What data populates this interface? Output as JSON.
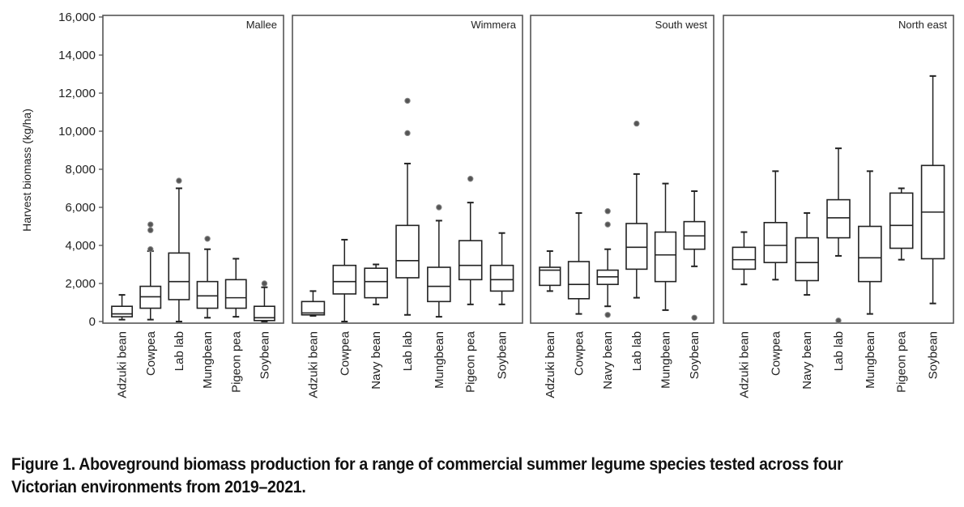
{
  "chart_data": {
    "type": "boxplot",
    "title": "",
    "ylabel": "Harvest biomass (kg/ha)",
    "xlabel": "",
    "ylim": [
      0,
      16000
    ],
    "yticks": [
      0,
      2000,
      4000,
      6000,
      8000,
      10000,
      12000,
      14000,
      16000
    ],
    "ytick_labels": [
      "0",
      "2,000",
      "4,000",
      "6,000",
      "8,000",
      "10,000",
      "12,000",
      "14,000",
      "16,000"
    ],
    "grid": false,
    "panels": [
      {
        "name": "Mallee",
        "categories": [
          "Adzuki bean",
          "Cowpea",
          "Lab lab",
          "Mungbean",
          "Pigeon pea",
          "Soybean"
        ],
        "boxes": [
          {
            "min": 100,
            "q1": 250,
            "median": 400,
            "q3": 800,
            "max": 1400,
            "outliers": []
          },
          {
            "min": 100,
            "q1": 700,
            "median": 1300,
            "q3": 1850,
            "max": 3700,
            "outliers": [
              3800,
              4800,
              5100
            ]
          },
          {
            "min": 0,
            "q1": 1150,
            "median": 2100,
            "q3": 3600,
            "max": 7000,
            "outliers": [
              7400
            ]
          },
          {
            "min": 200,
            "q1": 700,
            "median": 1350,
            "q3": 2100,
            "max": 3800,
            "outliers": [
              4350
            ]
          },
          {
            "min": 250,
            "q1": 700,
            "median": 1250,
            "q3": 2200,
            "max": 3300,
            "outliers": []
          },
          {
            "min": 0,
            "q1": 50,
            "median": 200,
            "q3": 800,
            "max": 1800,
            "outliers": [
              2000
            ]
          }
        ]
      },
      {
        "name": "Wimmera",
        "categories": [
          "Adzuki bean",
          "Cowpea",
          "Navy bean",
          "Lab lab",
          "Mungbean",
          "Pigeon pea",
          "Soybean"
        ],
        "boxes": [
          {
            "min": 300,
            "q1": 350,
            "median": 450,
            "q3": 1050,
            "max": 1600,
            "outliers": []
          },
          {
            "min": 0,
            "q1": 1450,
            "median": 2100,
            "q3": 2950,
            "max": 4300,
            "outliers": []
          },
          {
            "min": 900,
            "q1": 1250,
            "median": 2100,
            "q3": 2800,
            "max": 3000,
            "outliers": []
          },
          {
            "min": 350,
            "q1": 2300,
            "median": 3200,
            "q3": 5050,
            "max": 8300,
            "outliers": [
              9900,
              11600
            ]
          },
          {
            "min": 250,
            "q1": 1050,
            "median": 1850,
            "q3": 2850,
            "max": 5300,
            "outliers": [
              6000
            ]
          },
          {
            "min": 900,
            "q1": 2200,
            "median": 2950,
            "q3": 4250,
            "max": 6250,
            "outliers": [
              7500
            ]
          },
          {
            "min": 900,
            "q1": 1600,
            "median": 2200,
            "q3": 2950,
            "max": 4650,
            "outliers": []
          }
        ]
      },
      {
        "name": "South west",
        "categories": [
          "Adzuki bean",
          "Cowpea",
          "Navy bean",
          "Lab lab",
          "Mungbean",
          "Soybean"
        ],
        "boxes": [
          {
            "min": 1600,
            "q1": 1900,
            "median": 2700,
            "q3": 2850,
            "max": 3700,
            "outliers": []
          },
          {
            "min": 400,
            "q1": 1200,
            "median": 1950,
            "q3": 3150,
            "max": 5700,
            "outliers": []
          },
          {
            "min": 800,
            "q1": 1950,
            "median": 2350,
            "q3": 2700,
            "max": 3800,
            "outliers": [
              350,
              5100,
              5800
            ]
          },
          {
            "min": 1250,
            "q1": 2750,
            "median": 3900,
            "q3": 5150,
            "max": 7750,
            "outliers": [
              10400
            ]
          },
          {
            "min": 600,
            "q1": 2100,
            "median": 3500,
            "q3": 4700,
            "max": 7250,
            "outliers": []
          },
          {
            "min": 2900,
            "q1": 3800,
            "median": 4500,
            "q3": 5250,
            "max": 6850,
            "outliers": [
              200
            ]
          }
        ]
      },
      {
        "name": "North east",
        "categories": [
          "Adzuki bean",
          "Cowpea",
          "Navy bean",
          "Lab lab",
          "Mungbean",
          "Pigeon pea",
          "Soybean"
        ],
        "boxes": [
          {
            "min": 1950,
            "q1": 2750,
            "median": 3250,
            "q3": 3900,
            "max": 4700,
            "outliers": []
          },
          {
            "min": 2200,
            "q1": 3100,
            "median": 4000,
            "q3": 5200,
            "max": 7900,
            "outliers": []
          },
          {
            "min": 1400,
            "q1": 2150,
            "median": 3100,
            "q3": 4400,
            "max": 5700,
            "outliers": []
          },
          {
            "min": 3450,
            "q1": 4400,
            "median": 5450,
            "q3": 6400,
            "max": 9100,
            "outliers": [
              50
            ]
          },
          {
            "min": 400,
            "q1": 2100,
            "median": 3350,
            "q3": 5000,
            "max": 7900,
            "outliers": []
          },
          {
            "min": 3250,
            "q1": 3850,
            "median": 5050,
            "q3": 6750,
            "max": 7000,
            "outliers": []
          },
          {
            "min": 950,
            "q1": 3300,
            "median": 5750,
            "q3": 8200,
            "max": 12900,
            "outliers": []
          }
        ]
      }
    ]
  },
  "caption": {
    "text": "Figure 1. Aboveground biomass production for a range of commercial summer legume species tested across four Victorian environments from 2019–2021."
  },
  "colors": {
    "stroke": "#222222",
    "outlier_fill": "#555555",
    "background": "#ffffff"
  }
}
